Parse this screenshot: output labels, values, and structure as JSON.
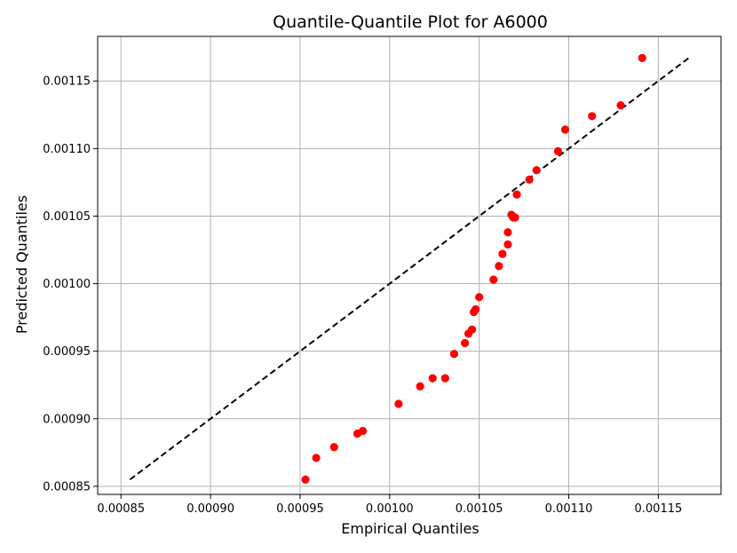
{
  "chart_data": {
    "type": "scatter",
    "title": "Quantile-Quantile Plot for A6000",
    "xlabel": "Empirical Quantiles",
    "ylabel": "Predicted Quantiles",
    "xlim": [
      0.000837,
      0.001185
    ],
    "ylim": [
      0.000844,
      0.001183
    ],
    "xticks": [
      0.00085,
      0.0009,
      0.00095,
      0.001,
      0.00105,
      0.0011,
      0.00115
    ],
    "xtick_labels": [
      "0.00085",
      "0.00090",
      "0.00095",
      "0.00100",
      "0.00105",
      "0.00110",
      "0.00115"
    ],
    "yticks": [
      0.00085,
      0.0009,
      0.00095,
      0.001,
      0.00105,
      0.0011,
      0.00115
    ],
    "ytick_labels": [
      "0.00085",
      "0.00090",
      "0.00095",
      "0.00100",
      "0.00105",
      "0.00110",
      "0.00115"
    ],
    "grid": true,
    "point_color": "#ff0000",
    "reference_line": {
      "style": "dashed",
      "color": "#000000",
      "x": [
        0.000855,
        0.001168
      ],
      "y": [
        0.000855,
        0.001168
      ]
    },
    "points": [
      {
        "x": 0.000953,
        "y": 0.000855
      },
      {
        "x": 0.000959,
        "y": 0.000871
      },
      {
        "x": 0.000969,
        "y": 0.000879
      },
      {
        "x": 0.000982,
        "y": 0.000889
      },
      {
        "x": 0.000985,
        "y": 0.000891
      },
      {
        "x": 0.001005,
        "y": 0.000911
      },
      {
        "x": 0.001017,
        "y": 0.000924
      },
      {
        "x": 0.001024,
        "y": 0.00093
      },
      {
        "x": 0.001031,
        "y": 0.00093
      },
      {
        "x": 0.001036,
        "y": 0.000948
      },
      {
        "x": 0.001042,
        "y": 0.000956
      },
      {
        "x": 0.001044,
        "y": 0.000963
      },
      {
        "x": 0.001046,
        "y": 0.000966
      },
      {
        "x": 0.001047,
        "y": 0.000979
      },
      {
        "x": 0.001048,
        "y": 0.000981
      },
      {
        "x": 0.00105,
        "y": 0.00099
      },
      {
        "x": 0.001058,
        "y": 0.001003
      },
      {
        "x": 0.001061,
        "y": 0.001013
      },
      {
        "x": 0.001063,
        "y": 0.001022
      },
      {
        "x": 0.001066,
        "y": 0.001029
      },
      {
        "x": 0.001066,
        "y": 0.001038
      },
      {
        "x": 0.001068,
        "y": 0.001051
      },
      {
        "x": 0.001069,
        "y": 0.001049
      },
      {
        "x": 0.00107,
        "y": 0.001049
      },
      {
        "x": 0.001071,
        "y": 0.001066
      },
      {
        "x": 0.001078,
        "y": 0.001077
      },
      {
        "x": 0.001082,
        "y": 0.001084
      },
      {
        "x": 0.001094,
        "y": 0.001098
      },
      {
        "x": 0.001098,
        "y": 0.001114
      },
      {
        "x": 0.001113,
        "y": 0.001124
      },
      {
        "x": 0.001129,
        "y": 0.001132
      },
      {
        "x": 0.001141,
        "y": 0.001167
      }
    ]
  }
}
